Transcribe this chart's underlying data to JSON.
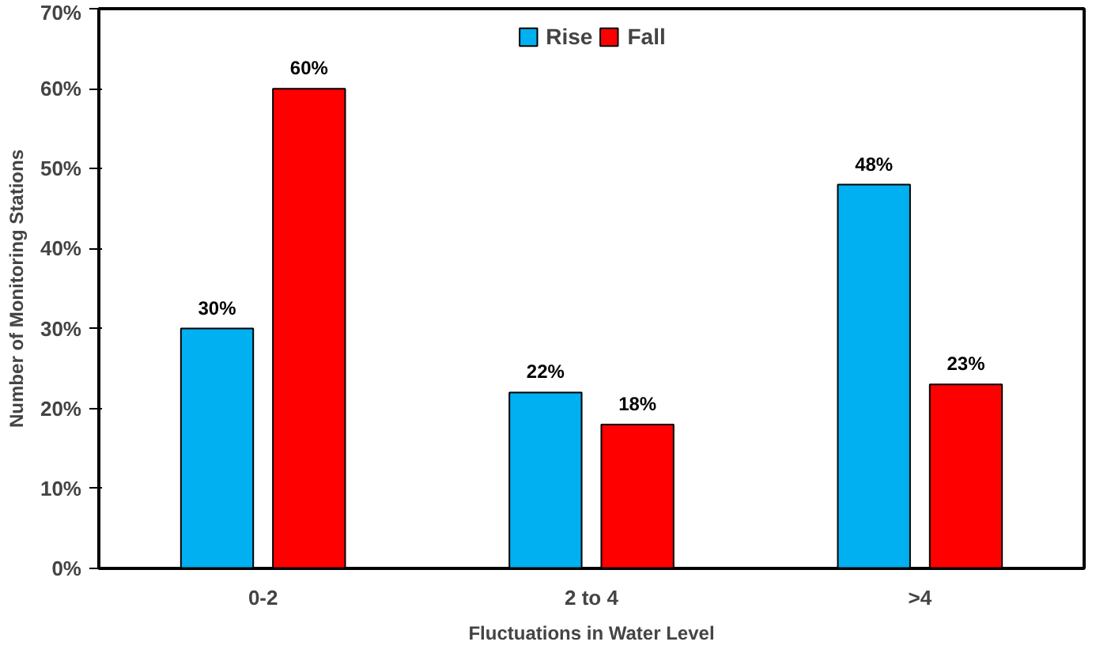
{
  "chart_data": {
    "type": "bar",
    "xlabel": "Fluctuations in Water Level",
    "ylabel": "Number of Monitoring Stations",
    "categories": [
      "0-2",
      "2 to 4",
      ">4"
    ],
    "series": [
      {
        "name": "Rise",
        "color": "#00b0f0",
        "values": [
          30,
          22,
          48
        ],
        "value_labels": [
          "30%",
          "22%",
          "48%"
        ]
      },
      {
        "name": "Fall",
        "color": "#ff0000",
        "values": [
          60,
          18,
          23
        ],
        "value_labels": [
          "60%",
          "18%",
          "23%"
        ]
      }
    ],
    "ylim": [
      0,
      70
    ],
    "yticks": [
      {
        "value": 0,
        "label": "0%"
      },
      {
        "value": 10,
        "label": "10%"
      },
      {
        "value": 20,
        "label": "20%"
      },
      {
        "value": 30,
        "label": "30%"
      },
      {
        "value": 40,
        "label": "40%"
      },
      {
        "value": 50,
        "label": "50%"
      },
      {
        "value": 60,
        "label": "60%"
      },
      {
        "value": 70,
        "label": "70%"
      }
    ],
    "grid": false,
    "legend": "top"
  }
}
